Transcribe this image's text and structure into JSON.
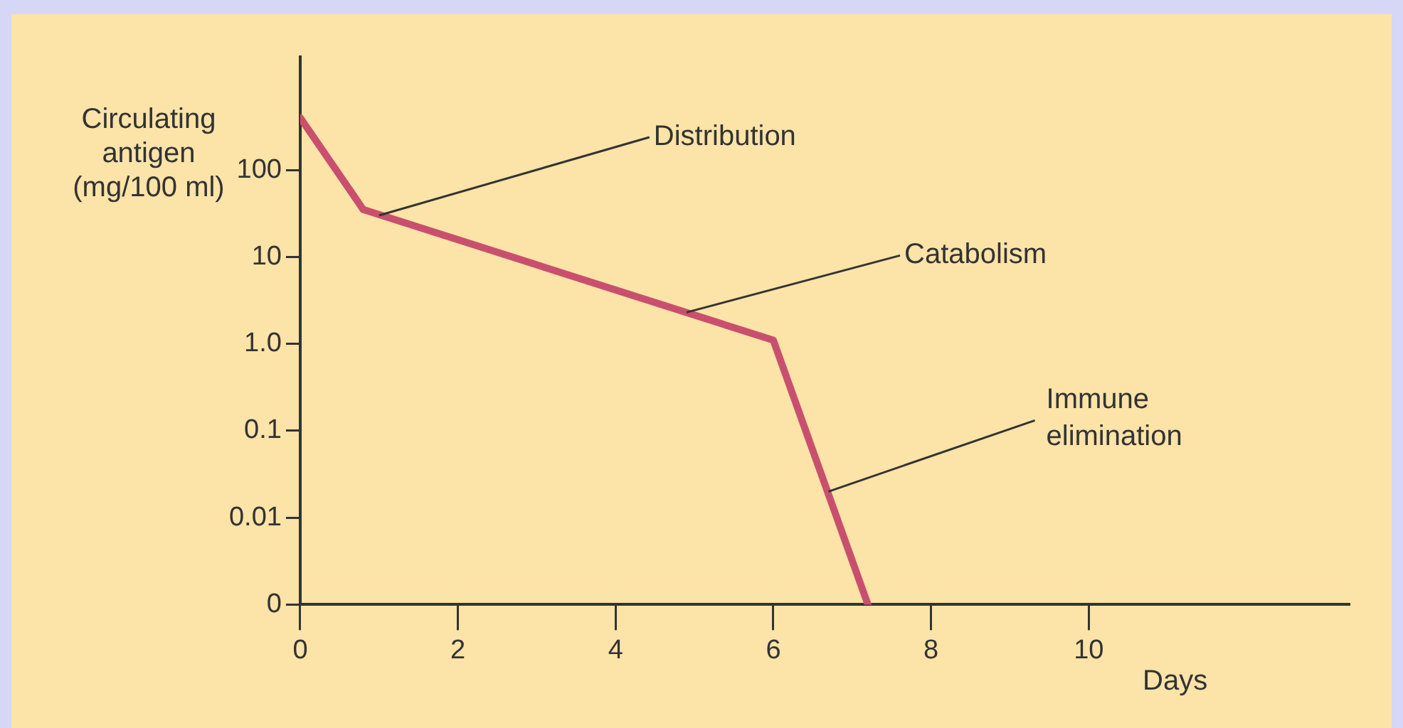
{
  "chart_data": {
    "type": "line",
    "xlabel": "Days",
    "ylabel": "Circulating antigen (mg/100 ml)",
    "x": [
      0,
      0.8,
      6,
      7.2
    ],
    "series": [
      {
        "color": "#c8506e",
        "values": [
          400,
          35,
          1.1,
          0.001
        ]
      }
    ],
    "xlim": [
      0,
      13.3
    ],
    "xticks": [
      0,
      2,
      4,
      6,
      8,
      10
    ],
    "ylim": [
      0.001,
      2000
    ],
    "yticks": [
      {
        "value": 0.001,
        "label": "0"
      },
      {
        "value": 0.01,
        "label": "0.01"
      },
      {
        "value": 0.1,
        "label": "0.1"
      },
      {
        "value": 1,
        "label": "1.0"
      },
      10,
      100
    ],
    "log": true,
    "grid": false,
    "legend": false,
    "marker": "none",
    "line_style": "solid",
    "annotations": [
      {
        "text": "Distribution",
        "x": 1.0,
        "y": 30
      },
      {
        "text": "Catabolism",
        "x": 4.9,
        "y": 2.3
      },
      {
        "text": "Immune elimination",
        "x": 6.7,
        "y": 0.02
      }
    ]
  }
}
